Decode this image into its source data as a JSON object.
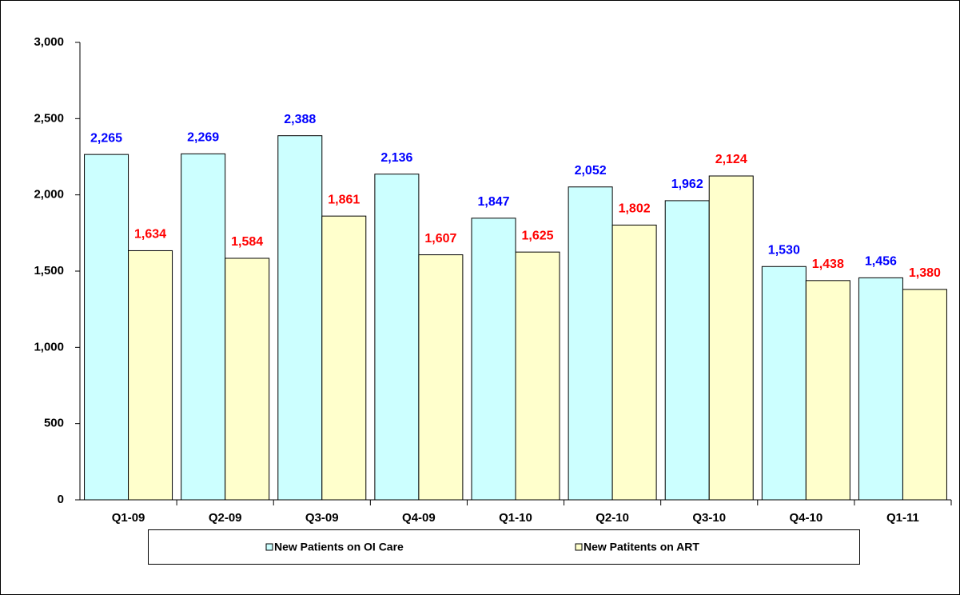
{
  "chart_data": {
    "type": "bar",
    "categories": [
      "Q1-09",
      "Q2-09",
      "Q3-09",
      "Q4-09",
      "Q1-10",
      "Q2-10",
      "Q3-10",
      "Q4-10",
      "Q1-11"
    ],
    "series": [
      {
        "name": "New Patients on OI Care",
        "color": "#ccffff",
        "label_color": "#0000ff",
        "values": [
          2265,
          2269,
          2388,
          2136,
          1847,
          2052,
          1962,
          1530,
          1456
        ],
        "value_labels": [
          "2,265",
          "2,269",
          "2,388",
          "2,136",
          "1,847",
          "2,052",
          "1,962",
          "1,530",
          "1,456"
        ]
      },
      {
        "name": "New Patitents on ART",
        "color": "#ffffcc",
        "label_color": "#ff0000",
        "values": [
          1634,
          1584,
          1861,
          1607,
          1625,
          1802,
          2124,
          1438,
          1380
        ],
        "value_labels": [
          "1,634",
          "1,584",
          "1,861",
          "1,607",
          "1,625",
          "1,802",
          "2,124",
          "1,438",
          "1,380"
        ]
      }
    ],
    "ylim": [
      0,
      3000
    ],
    "yticks": [
      0,
      500,
      {
        "value": 1000,
        "label": "1,000"
      },
      {
        "value": 1500,
        "label": "1,500"
      },
      {
        "value": 2000,
        "label": "2,000"
      },
      {
        "value": 2500,
        "label": "2,500"
      },
      {
        "value": 3000,
        "label": "3,000"
      }
    ],
    "grid": false,
    "legend": "bottom"
  }
}
